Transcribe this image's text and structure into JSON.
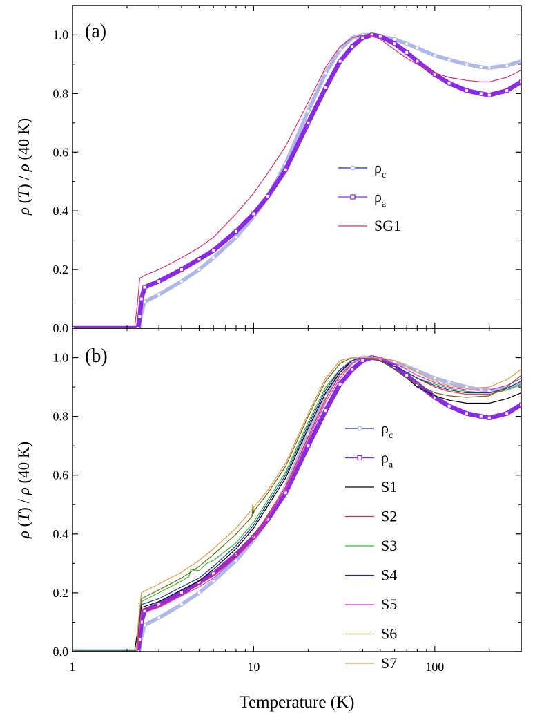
{
  "chart_data": [
    {
      "type": "line",
      "panel_label": "(a)",
      "xlabel": "",
      "ylabel": "ρ(T) / ρ(40 K)",
      "xscale": "log",
      "xlim": [
        1,
        300
      ],
      "ylim": [
        0.0,
        1.1
      ],
      "yticks": [
        "0.0",
        "0.2",
        "0.4",
        "0.6",
        "0.8",
        "1.0"
      ],
      "xticks": [],
      "legend_position": "center-right",
      "series": [
        {
          "name": "ρc",
          "legend_main": "ρ",
          "legend_sub": "c",
          "color": "#b0b8e8",
          "marker": "circle",
          "x": [
            1,
            2.33,
            2.38,
            2.5,
            3,
            4,
            5,
            6,
            8,
            10,
            12,
            15,
            20,
            25,
            30,
            35,
            40,
            45,
            50,
            60,
            70,
            80,
            100,
            120,
            150,
            180,
            200,
            250,
            300
          ],
          "y": [
            0,
            0,
            0.04,
            0.09,
            0.115,
            0.16,
            0.2,
            0.24,
            0.31,
            0.38,
            0.45,
            0.56,
            0.74,
            0.87,
            0.95,
            0.99,
            1.0,
            1.0,
            0.995,
            0.985,
            0.97,
            0.955,
            0.93,
            0.915,
            0.9,
            0.89,
            0.888,
            0.895,
            0.91
          ]
        },
        {
          "name": "ρa",
          "legend_main": "ρ",
          "legend_sub": "a",
          "color": "#8a2be2",
          "marker": "square",
          "x": [
            1,
            2.3,
            2.35,
            2.4,
            2.5,
            3,
            4,
            5,
            6,
            8,
            10,
            12,
            15,
            20,
            25,
            30,
            35,
            40,
            45,
            50,
            60,
            70,
            80,
            100,
            120,
            150,
            180,
            200,
            250,
            300
          ],
          "y": [
            0,
            0,
            0.04,
            0.1,
            0.14,
            0.16,
            0.2,
            0.235,
            0.265,
            0.33,
            0.39,
            0.45,
            0.54,
            0.7,
            0.82,
            0.91,
            0.96,
            0.99,
            1.0,
            0.995,
            0.97,
            0.94,
            0.91,
            0.865,
            0.835,
            0.81,
            0.8,
            0.795,
            0.81,
            0.84
          ]
        },
        {
          "name": "SG1",
          "color": "#d6336c",
          "marker": "none",
          "x": [
            1,
            2.2,
            2.28,
            2.35,
            2.5,
            3,
            4,
            5,
            6,
            8,
            10,
            12,
            15,
            20,
            25,
            30,
            35,
            40,
            45,
            50,
            60,
            70,
            80,
            100,
            120,
            150,
            180,
            200,
            250,
            300
          ],
          "y": [
            0,
            0,
            0.08,
            0.17,
            0.18,
            0.2,
            0.24,
            0.275,
            0.31,
            0.39,
            0.46,
            0.53,
            0.62,
            0.77,
            0.89,
            0.96,
            0.99,
            1.0,
            0.998,
            0.985,
            0.95,
            0.92,
            0.9,
            0.87,
            0.855,
            0.845,
            0.84,
            0.84,
            0.855,
            0.88
          ]
        }
      ]
    },
    {
      "type": "line",
      "panel_label": "(b)",
      "xlabel": "Temperature (K)",
      "ylabel": "ρ(T) / ρ(40 K)",
      "xscale": "log",
      "xlim": [
        1,
        300
      ],
      "ylim": [
        0.0,
        1.1
      ],
      "yticks": [
        "0.0",
        "0.2",
        "0.4",
        "0.6",
        "0.8",
        "1.0"
      ],
      "xticks": [
        "1",
        "10",
        "100"
      ],
      "legend_position": "center-right",
      "series": [
        {
          "name": "ρc",
          "legend_main": "ρ",
          "legend_sub": "c",
          "color": "#b0b8e8",
          "marker": "circle",
          "x": [
            1,
            2.33,
            2.38,
            2.5,
            3,
            4,
            5,
            6,
            8,
            10,
            12,
            15,
            20,
            25,
            30,
            35,
            40,
            45,
            50,
            60,
            70,
            80,
            100,
            120,
            150,
            180,
            200,
            250,
            300
          ],
          "y": [
            0,
            0,
            0.04,
            0.09,
            0.115,
            0.16,
            0.2,
            0.24,
            0.31,
            0.38,
            0.45,
            0.56,
            0.74,
            0.87,
            0.95,
            0.99,
            1.0,
            1.0,
            0.995,
            0.985,
            0.97,
            0.955,
            0.93,
            0.915,
            0.9,
            0.89,
            0.888,
            0.895,
            0.91
          ]
        },
        {
          "name": "ρa",
          "legend_main": "ρ",
          "legend_sub": "a",
          "color": "#8a2be2",
          "marker": "square",
          "x": [
            1,
            2.3,
            2.35,
            2.4,
            2.5,
            3,
            4,
            5,
            6,
            8,
            10,
            12,
            15,
            20,
            25,
            30,
            35,
            40,
            45,
            50,
            60,
            70,
            80,
            100,
            120,
            150,
            180,
            200,
            250,
            300
          ],
          "y": [
            0,
            0,
            0.04,
            0.1,
            0.14,
            0.16,
            0.2,
            0.235,
            0.265,
            0.33,
            0.39,
            0.45,
            0.54,
            0.7,
            0.82,
            0.91,
            0.96,
            0.99,
            1.0,
            0.995,
            0.97,
            0.94,
            0.91,
            0.865,
            0.835,
            0.81,
            0.8,
            0.795,
            0.81,
            0.84
          ]
        },
        {
          "name": "S1",
          "color": "#000000",
          "marker": "none",
          "x": [
            1,
            2.2,
            2.3,
            2.4,
            3,
            4,
            5,
            6,
            8,
            10,
            15,
            20,
            25,
            30,
            35,
            40,
            45,
            50,
            60,
            70,
            80,
            100,
            120,
            150,
            200,
            250,
            300
          ],
          "y": [
            0,
            0,
            0.08,
            0.15,
            0.17,
            0.21,
            0.24,
            0.28,
            0.35,
            0.42,
            0.59,
            0.76,
            0.88,
            0.95,
            0.99,
            1.0,
            0.998,
            0.99,
            0.96,
            0.93,
            0.9,
            0.87,
            0.855,
            0.845,
            0.845,
            0.86,
            0.88
          ]
        },
        {
          "name": "S2",
          "color": "#e0303a",
          "marker": "none",
          "x": [
            1,
            2.25,
            2.32,
            2.4,
            3,
            4,
            5,
            6,
            8,
            10,
            15,
            20,
            25,
            30,
            35,
            40,
            45,
            50,
            60,
            70,
            80,
            100,
            120,
            150,
            200,
            250,
            300
          ],
          "y": [
            0,
            0,
            0.06,
            0.14,
            0.155,
            0.19,
            0.23,
            0.26,
            0.33,
            0.39,
            0.56,
            0.73,
            0.86,
            0.94,
            0.98,
            1.0,
            0.998,
            0.99,
            0.97,
            0.95,
            0.93,
            0.9,
            0.885,
            0.875,
            0.875,
            0.89,
            0.91
          ]
        },
        {
          "name": "S3",
          "color": "#33bb33",
          "marker": "none",
          "x": [
            1,
            2.25,
            2.3,
            2.4,
            3,
            4,
            4.4,
            4.5,
            5,
            5.5,
            6,
            8,
            10,
            15,
            20,
            25,
            30,
            35,
            40,
            45,
            50,
            60,
            70,
            80,
            100,
            120,
            150,
            200,
            250,
            300
          ],
          "y": [
            0.005,
            0.005,
            0.08,
            0.17,
            0.2,
            0.24,
            0.255,
            0.28,
            0.275,
            0.3,
            0.31,
            0.37,
            0.44,
            0.61,
            0.78,
            0.9,
            0.96,
            0.99,
            1.0,
            0.998,
            0.99,
            0.97,
            0.95,
            0.93,
            0.91,
            0.895,
            0.885,
            0.88,
            0.89,
            0.91
          ]
        },
        {
          "name": "S4",
          "color": "#1f2f9a",
          "marker": "none",
          "x": [
            1,
            2.25,
            2.3,
            2.4,
            3,
            4,
            5,
            6,
            8,
            10,
            15,
            20,
            25,
            30,
            35,
            40,
            45,
            50,
            60,
            70,
            80,
            100,
            120,
            150,
            200,
            250,
            300
          ],
          "y": [
            0,
            0,
            0.07,
            0.16,
            0.18,
            0.22,
            0.25,
            0.29,
            0.36,
            0.43,
            0.6,
            0.77,
            0.89,
            0.96,
            0.99,
            1.0,
            0.998,
            0.99,
            0.97,
            0.95,
            0.93,
            0.905,
            0.89,
            0.88,
            0.88,
            0.895,
            0.92
          ]
        },
        {
          "name": "S5",
          "color": "#dd33cc",
          "marker": "none",
          "x": [
            1,
            2.28,
            2.33,
            2.4,
            3,
            4,
            5,
            6,
            8,
            10,
            15,
            20,
            25,
            30,
            35,
            40,
            45,
            50,
            60,
            70,
            80,
            100,
            120,
            150,
            200,
            250,
            300
          ],
          "y": [
            0,
            0,
            0.06,
            0.13,
            0.15,
            0.19,
            0.22,
            0.25,
            0.32,
            0.38,
            0.55,
            0.72,
            0.85,
            0.93,
            0.98,
            1.0,
            1.0,
            0.995,
            0.98,
            0.96,
            0.94,
            0.915,
            0.9,
            0.89,
            0.89,
            0.905,
            0.93
          ]
        },
        {
          "name": "S6",
          "color": "#6b6b1a",
          "marker": "none",
          "x": [
            1,
            2.25,
            2.3,
            2.4,
            3,
            4,
            5,
            6,
            8,
            9.8,
            9.9,
            10,
            10.1,
            12,
            15,
            20,
            25,
            30,
            35,
            40,
            45,
            50,
            60,
            70,
            80,
            100,
            120,
            150,
            200,
            250,
            300
          ],
          "y": [
            0,
            0,
            0.08,
            0.18,
            0.21,
            0.25,
            0.29,
            0.33,
            0.4,
            0.46,
            0.5,
            0.47,
            0.48,
            0.54,
            0.63,
            0.8,
            0.92,
            0.98,
            1.0,
            1.0,
            0.997,
            0.99,
            0.96,
            0.93,
            0.91,
            0.88,
            0.87,
            0.865,
            0.87,
            0.9,
            0.94
          ]
        },
        {
          "name": "S7",
          "color": "#e09a4a",
          "marker": "none",
          "x": [
            1,
            2.25,
            2.3,
            2.4,
            3,
            4,
            5,
            6,
            8,
            10,
            12,
            15,
            20,
            25,
            30,
            35,
            40,
            45,
            50,
            60,
            70,
            80,
            100,
            120,
            150,
            200,
            250,
            300
          ],
          "y": [
            0,
            0,
            0.09,
            0.2,
            0.23,
            0.27,
            0.31,
            0.35,
            0.42,
            0.49,
            0.55,
            0.64,
            0.81,
            0.93,
            0.99,
            1.0,
            1.0,
            1.0,
            0.998,
            0.99,
            0.97,
            0.95,
            0.92,
            0.905,
            0.895,
            0.9,
            0.925,
            0.96
          ]
        }
      ]
    }
  ]
}
